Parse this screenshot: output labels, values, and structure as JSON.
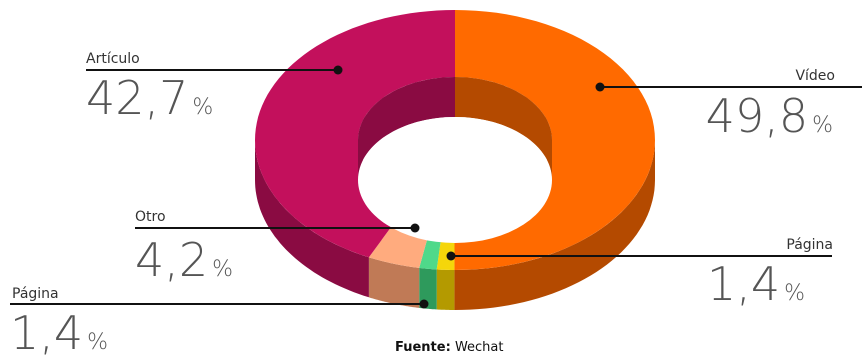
{
  "chart_data": {
    "type": "pie",
    "variant": "3d-donut",
    "slices": [
      {
        "label": "Vídeo",
        "value": 49.8,
        "display": "49,8",
        "unit": "%",
        "color": "#ff6a00",
        "side_color": "#b44a00"
      },
      {
        "label": "Página",
        "value": 1.4,
        "display": "1,4",
        "unit": "%",
        "color": "#f5d60a",
        "side_color": "#b49a00"
      },
      {
        "label": "Página",
        "value": 1.4,
        "display": "1,4",
        "unit": "%",
        "color": "#4fd98a",
        "side_color": "#2e9a5c"
      },
      {
        "label": "Otro",
        "value": 4.2,
        "display": "4,2",
        "unit": "%",
        "color": "#ffab7e",
        "side_color": "#c07a56"
      },
      {
        "label": "Artículo",
        "value": 42.7,
        "display": "42,7",
        "unit": "%",
        "color": "#c3105c",
        "side_color": "#8a0b42"
      }
    ]
  },
  "source": {
    "label": "Fuente:",
    "value": "Wechat"
  }
}
